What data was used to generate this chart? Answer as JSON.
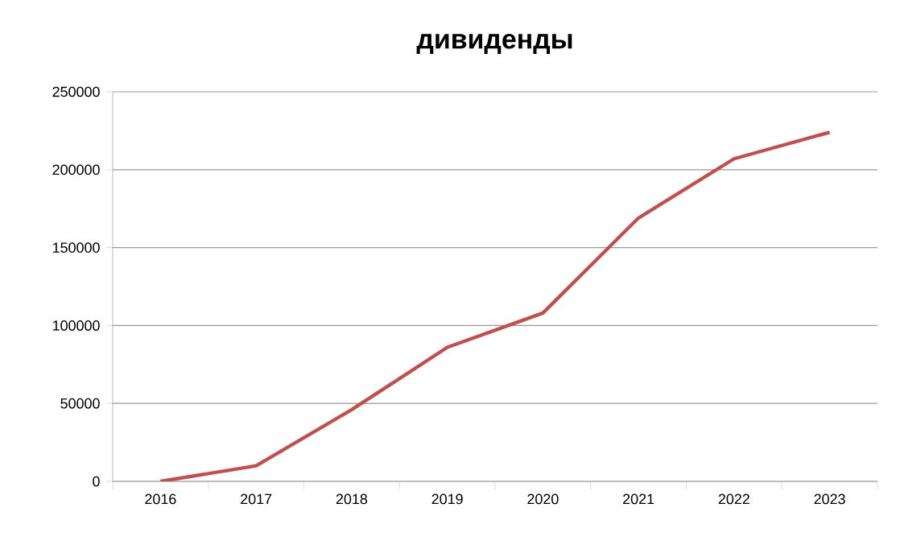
{
  "chart_data": {
    "type": "line",
    "title": "дивиденды",
    "categories": [
      "2016",
      "2017",
      "2018",
      "2019",
      "2020",
      "2021",
      "2022",
      "2023"
    ],
    "series": [
      {
        "color": "#c0504d",
        "values": [
          0,
          10000,
          46000,
          86000,
          108000,
          169000,
          207000,
          224000
        ]
      }
    ],
    "ylim": [
      0,
      250000
    ],
    "yticks": [
      0,
      50000,
      100000,
      150000,
      200000,
      250000
    ],
    "grid": "y",
    "marker": "none",
    "line_style": "solid"
  }
}
